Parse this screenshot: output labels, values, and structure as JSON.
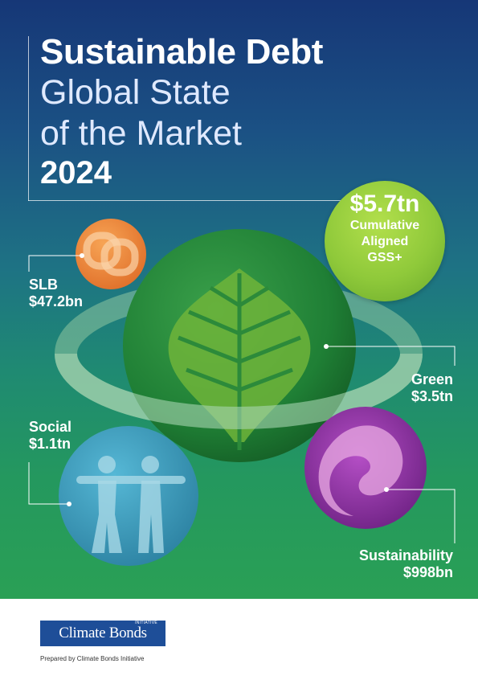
{
  "title": {
    "line1": "Sustainable Debt",
    "line2": "Global State",
    "line3": "of the Market",
    "year": "2024"
  },
  "bubbles": {
    "cumulative": {
      "value": "$5.7tn",
      "line1": "Cumulative",
      "line2": "Aligned",
      "line3": "GSS+"
    },
    "slb": {
      "name": "SLB",
      "value": "$47.2bn"
    },
    "green": {
      "name": "Green",
      "value": "$3.5tn"
    },
    "social": {
      "name": "Social",
      "value": "$1.1tn"
    },
    "sustainability": {
      "name": "Sustainability",
      "value": "$998bn"
    }
  },
  "footer": {
    "logo_text": "Climate Bonds",
    "logo_sup": "INITIATIVE",
    "prepared_by": "Prepared by Climate Bonds Initiative"
  },
  "colors": {
    "background_top": "#163777",
    "background_bottom": "#2aa055",
    "slb": "#f08a3c",
    "green": "#2d8f3a",
    "cumulative": "#8fc93a",
    "social": "#3a9fc4",
    "sustainability": "#8a2ea0",
    "logo": "#1e4e98"
  }
}
